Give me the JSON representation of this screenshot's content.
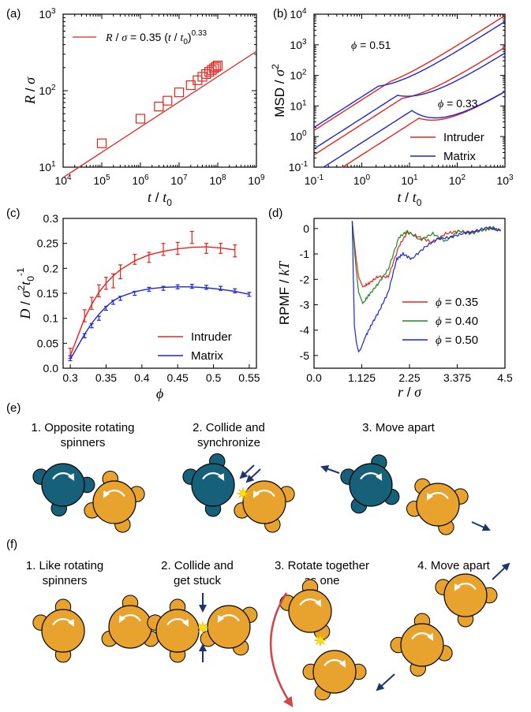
{
  "panel_labels": {
    "a": "(a)",
    "b": "(b)",
    "c": "(c)",
    "d": "(d)",
    "e": "(e)",
    "f": "(f)"
  },
  "colors": {
    "red": "#e8231c",
    "blue": "#1a27d6",
    "green": "#1e8a1e",
    "teal": "#17607a",
    "orange": "#e8a22e",
    "arrow": "#1b3470",
    "curved_arrow": "#d04848",
    "spark": "#ffe200"
  },
  "chart_data": [
    {
      "id": "a",
      "type": "scatter",
      "xlabel": "t / t0",
      "ylabel": "R / σ",
      "xscale": "log",
      "yscale": "log",
      "xlim": [
        10000,
        1000000000
      ],
      "ylim": [
        10,
        1000
      ],
      "xtick_exponents": [
        "4",
        "5",
        "6",
        "7",
        "8",
        "9"
      ],
      "ytick_exponents": [
        "1",
        "2",
        "3"
      ],
      "legend": "R / σ = 0.35 (t / t0)^0.33",
      "legend_placement": "top-left",
      "fit": {
        "prefactor": 0.35,
        "exponent": 0.33
      },
      "points": {
        "x": [
          100000,
          1000000,
          3000000,
          5000000,
          10000000,
          20000000,
          30000000,
          40000000,
          50000000,
          60000000,
          70000000,
          80000000,
          90000000,
          100000000
        ],
        "y": [
          20.5,
          43,
          62,
          74,
          95,
          118,
          137,
          152,
          165,
          176,
          186,
          196,
          205,
          213
        ]
      }
    },
    {
      "id": "b",
      "type": "line",
      "xlabel": "t / t0",
      "ylabel": "MSD / σ²",
      "xscale": "log",
      "yscale": "log",
      "xlim": [
        0.1,
        1000
      ],
      "ylim": [
        0.1,
        10000
      ],
      "xtick_exponents": [
        "-1",
        "0",
        "1",
        "2",
        "3"
      ],
      "ytick_exponents": [
        "-1",
        "0",
        "1",
        "2",
        "3",
        "4"
      ],
      "legend_placement": "bottom-right",
      "annotations": [
        "ϕ = 0.51",
        "ϕ = 0.33"
      ],
      "series": [
        {
          "name": "Intruder",
          "color": "red",
          "curves": [
            {
              "logy0": 0.2,
              "a": 1.95,
              "b": 0.25,
              "cut": 0.6
            },
            {
              "logy0": -0.6,
              "a": 2.05,
              "b": 0.5,
              "cut": 0.85
            },
            {
              "logy0": -1.6,
              "a": 2.15,
              "b": 1.0,
              "cut": 1.2
            }
          ]
        },
        {
          "name": "Matrix",
          "color": "blue",
          "curves": [
            {
              "logy0": 0.3,
              "a": 1.9,
              "b": 0.55,
              "cut": 0.35
            },
            {
              "logy0": -0.4,
              "a": 1.95,
              "b": 0.9,
              "cut": 0.75
            },
            {
              "logy0": -1.2,
              "a": 2.0,
              "b": 1.4,
              "cut": 1.05
            }
          ]
        }
      ]
    },
    {
      "id": "c",
      "type": "scatter",
      "xlabel": "ϕ",
      "ylabel": "D / σ² t0⁻¹",
      "xlim": [
        0.29,
        0.56
      ],
      "ylim": [
        0,
        0.3
      ],
      "xticks": [
        "0.3",
        "0.35",
        "0.4",
        "0.45",
        "0.5",
        "0.55"
      ],
      "yticks": [
        "0.0",
        "0.05",
        "0.1",
        "0.15",
        "0.2",
        "0.25",
        "0.3"
      ],
      "legend_placement": "bottom-right",
      "series": [
        {
          "name": "Intruder",
          "color": "red",
          "x": [
            0.3,
            0.32,
            0.33,
            0.34,
            0.35,
            0.36,
            0.37,
            0.39,
            0.41,
            0.43,
            0.45,
            0.47,
            0.49,
            0.51,
            0.53
          ],
          "y": [
            0.03,
            0.105,
            0.13,
            0.155,
            0.17,
            0.175,
            0.193,
            0.218,
            0.222,
            0.238,
            0.24,
            0.262,
            0.24,
            0.24,
            0.235
          ],
          "err": [
            0.01,
            0.012,
            0.012,
            0.012,
            0.012,
            0.014,
            0.014,
            0.01,
            0.01,
            0.012,
            0.012,
            0.012,
            0.01,
            0.01,
            0.012
          ],
          "fit_y": [
            0.025,
            0.1,
            0.128,
            0.152,
            0.17,
            0.185,
            0.197,
            0.215,
            0.227,
            0.234,
            0.239,
            0.242,
            0.243,
            0.241,
            0.237
          ]
        },
        {
          "name": "Matrix",
          "color": "blue",
          "x": [
            0.3,
            0.32,
            0.33,
            0.34,
            0.35,
            0.36,
            0.37,
            0.39,
            0.41,
            0.43,
            0.45,
            0.47,
            0.49,
            0.51,
            0.53,
            0.55
          ],
          "y": [
            0.02,
            0.065,
            0.085,
            0.1,
            0.12,
            0.132,
            0.14,
            0.15,
            0.158,
            0.16,
            0.163,
            0.164,
            0.162,
            0.16,
            0.155,
            0.148
          ],
          "err": [
            0.005,
            0.004,
            0.004,
            0.004,
            0.004,
            0.004,
            0.004,
            0.004,
            0.004,
            0.004,
            0.004,
            0.004,
            0.004,
            0.004,
            0.004,
            0.004
          ],
          "fit_y": [
            0.018,
            0.068,
            0.09,
            0.108,
            0.123,
            0.135,
            0.143,
            0.153,
            0.159,
            0.162,
            0.163,
            0.163,
            0.161,
            0.158,
            0.154,
            0.148
          ]
        }
      ]
    },
    {
      "id": "d",
      "type": "line",
      "xlabel": "r / σ",
      "ylabel": "RPMF / kT",
      "xlim": [
        0,
        4.5
      ],
      "ylim": [
        -5.5,
        0.4
      ],
      "xticks": [
        "0.0",
        "1.125",
        "2.25",
        "3.375",
        "4.5"
      ],
      "yticks": [
        "0",
        "-1",
        "-2",
        "-3",
        "-4",
        "-5"
      ],
      "legend_placement": "bottom-right",
      "series": [
        {
          "name": "ϕ = 0.35",
          "color": "red",
          "x": [
            0.9,
            0.98,
            1.05,
            1.15,
            1.3,
            1.5,
            1.75,
            2.0,
            2.2,
            2.5,
            2.8,
            3.1,
            3.4,
            3.7,
            4.0,
            4.2,
            4.4
          ],
          "y": [
            0.3,
            -1.0,
            -1.9,
            -2.3,
            -2.15,
            -1.9,
            -1.9,
            -0.7,
            -0.15,
            -0.35,
            -0.55,
            -0.2,
            -0.1,
            -0.15,
            -0.05,
            0.0,
            -0.05
          ]
        },
        {
          "name": "ϕ = 0.40",
          "color": "green",
          "x": [
            0.9,
            0.98,
            1.05,
            1.15,
            1.3,
            1.5,
            1.75,
            2.0,
            2.2,
            2.5,
            2.8,
            3.1,
            3.4,
            3.7,
            4.0,
            4.2,
            4.4
          ],
          "y": [
            0.3,
            -1.4,
            -2.5,
            -2.95,
            -2.6,
            -2.2,
            -1.6,
            -0.35,
            -0.1,
            -0.45,
            -0.2,
            -0.5,
            -0.1,
            -0.2,
            -0.05,
            0.05,
            -0.1
          ]
        },
        {
          "name": "ϕ = 0.50",
          "color": "blue",
          "x": [
            0.9,
            0.95,
            1.0,
            1.05,
            1.1,
            1.2,
            1.35,
            1.55,
            1.75,
            1.95,
            2.1,
            2.3,
            2.6,
            2.9,
            3.2,
            3.5,
            3.8,
            4.1,
            4.4
          ],
          "y": [
            0.3,
            -3.8,
            -4.5,
            -4.85,
            -4.75,
            -4.3,
            -3.8,
            -3.2,
            -2.5,
            -1.2,
            -1.0,
            -1.2,
            -0.75,
            -0.4,
            -0.35,
            -0.2,
            -0.1,
            0.05,
            -0.1
          ]
        }
      ]
    }
  ],
  "panel_e": {
    "steps": [
      "1. Opposite rotating\nspinners",
      "2. Collide and\nsynchronize",
      "3. Move apart"
    ]
  },
  "panel_f": {
    "steps": [
      "1. Like rotating\nspinners",
      "2. Collide and\nget stuck",
      "3. Rotate together\nas one",
      "4. Move apart"
    ]
  }
}
